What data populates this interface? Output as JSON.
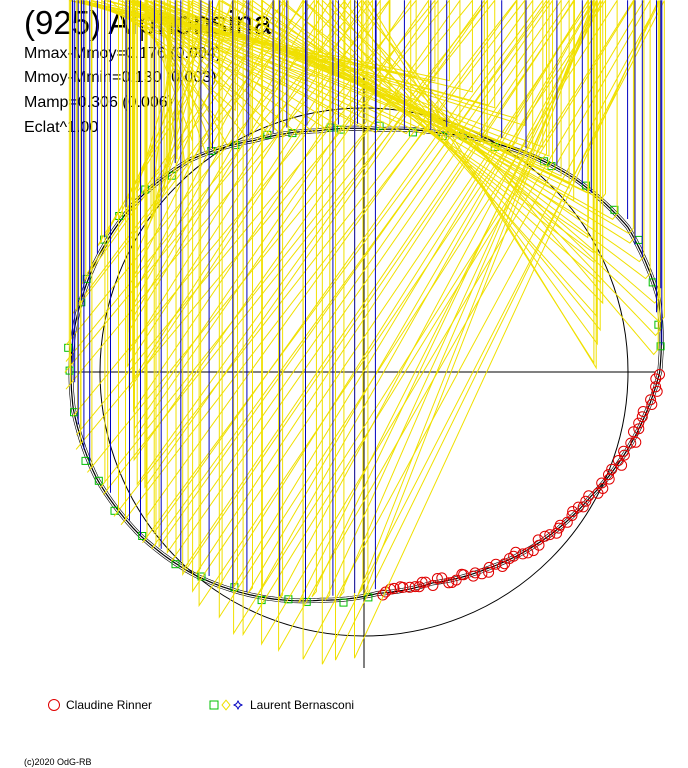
{
  "title": "(925) Alphonsina",
  "stats": [
    "Mmax-Mmoy=0.176 (0.004)",
    "Mmoy-Mmin=0.130 (0.003)",
    "Mamp=0.306 (0.006)",
    "Eclat^1.00"
  ],
  "legend": [
    {
      "label": "Claudine Rinner",
      "symbols": [
        "circle"
      ],
      "colors": [
        "#e00000"
      ]
    },
    {
      "label": "Laurent Bernasconi",
      "symbols": [
        "square",
        "diamond",
        "star"
      ],
      "colors": [
        "#00c000",
        "#f0e000",
        "#0000c0"
      ]
    }
  ],
  "copyright": "(c)2020 OdG-RB",
  "chart_data": {
    "type": "scatter",
    "projection": "polar",
    "description_axes": "rotational phase as angle, brightness as radius",
    "reference_circle": 1.0,
    "curve": [
      [
        0.0,
        1.12
      ],
      [
        0.04,
        1.05
      ],
      [
        0.08,
        0.98
      ],
      [
        0.12,
        0.93
      ],
      [
        0.16,
        0.88
      ],
      [
        0.2,
        0.84
      ],
      [
        0.24,
        0.84
      ],
      [
        0.28,
        0.88
      ],
      [
        0.32,
        0.94
      ],
      [
        0.36,
        1.0
      ],
      [
        0.4,
        1.05
      ],
      [
        0.44,
        1.09
      ],
      [
        0.48,
        1.11
      ],
      [
        0.52,
        1.11
      ],
      [
        0.56,
        1.1
      ],
      [
        0.6,
        1.08
      ],
      [
        0.64,
        1.04
      ],
      [
        0.68,
        0.97
      ],
      [
        0.72,
        0.93
      ],
      [
        0.76,
        0.92
      ],
      [
        0.8,
        0.95
      ],
      [
        0.84,
        1.01
      ],
      [
        0.88,
        1.08
      ],
      [
        0.92,
        1.14
      ],
      [
        0.96,
        1.15
      ]
    ],
    "series": [
      {
        "name": "Claudine Rinner",
        "symbol": "circle",
        "color": "#e00000",
        "phase_range": [
          0.0,
          0.24
        ],
        "count": 70
      },
      {
        "name": "Laurent Bernasconi",
        "symbol": "square",
        "color": "#00c000",
        "phase_range": [
          0.24,
          1.0
        ],
        "count": 40
      },
      {
        "name": "Laurent Bernasconi",
        "symbol": "diamond",
        "color": "#f0e000",
        "phase_range": [
          0.24,
          1.0
        ],
        "count": 75
      },
      {
        "name": "Laurent Bernasconi",
        "symbol": "star",
        "color": "#0000c0",
        "phase_range": [
          0.24,
          1.0
        ],
        "count": 50
      }
    ]
  }
}
